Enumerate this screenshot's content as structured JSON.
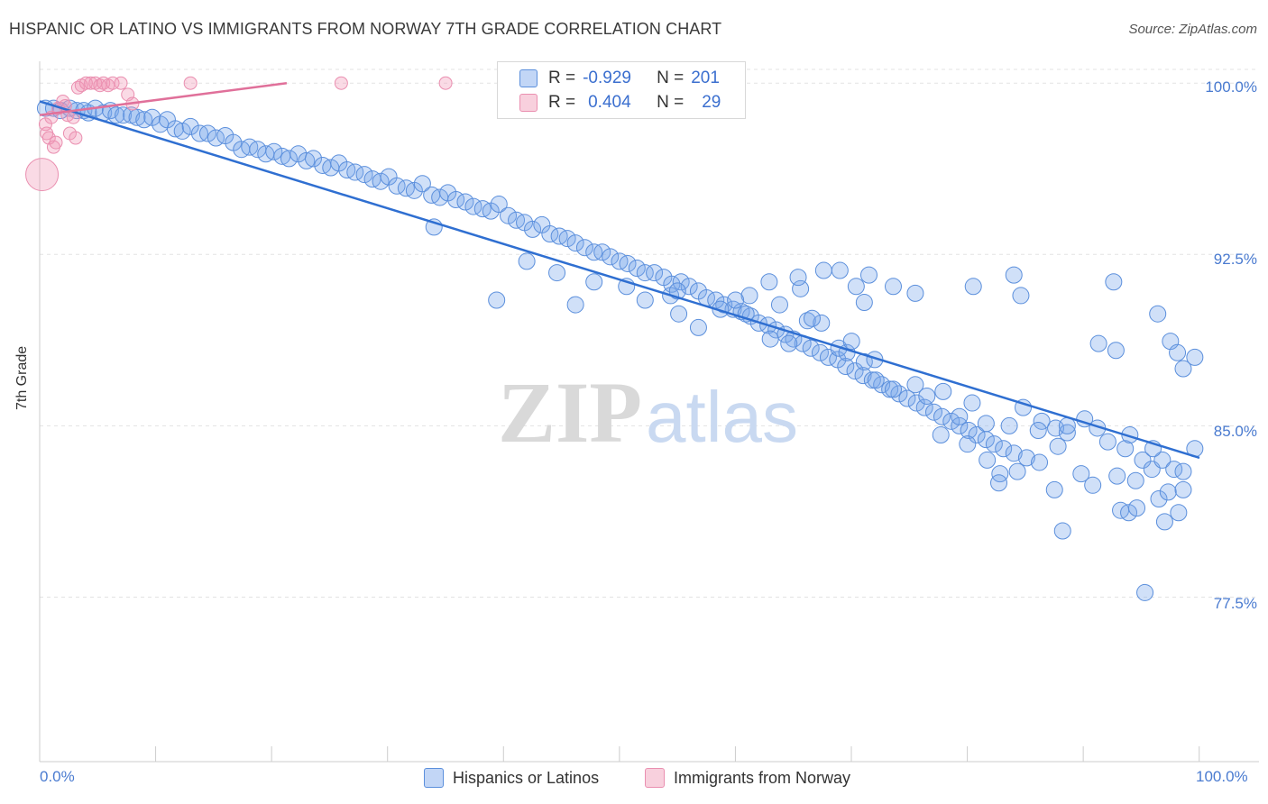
{
  "header": {
    "title": "HISPANIC OR LATINO VS IMMIGRANTS FROM NORWAY 7TH GRADE CORRELATION CHART",
    "source": "Source: ZipAtlas.com"
  },
  "watermark": {
    "zip": "ZIP",
    "atlas": "atlas"
  },
  "legend": {
    "row1": {
      "r_label": "R =",
      "r_value": "-0.929",
      "n_label": "N =",
      "n_value": "201"
    },
    "row2": {
      "r_label": "R =",
      "r_value": "0.404",
      "n_label": "N =",
      "n_value": "29"
    }
  },
  "colors": {
    "blue_fill": "rgba(120,165,235,0.35)",
    "blue_stroke": "#5b8fdc",
    "blue_line": "#2f6fd1",
    "pink_fill": "rgba(240,150,180,0.35)",
    "pink_stroke": "#ea8fb0",
    "pink_line": "#e0709a"
  },
  "chart_data": {
    "type": "scatter",
    "title": "HISPANIC OR LATINO VS IMMIGRANTS FROM NORWAY 7TH GRADE CORRELATION CHART",
    "xlabel": "",
    "ylabel": "7th Grade",
    "xlim": [
      0,
      100
    ],
    "ylim": [
      70.3,
      100.6
    ],
    "x_tick_labels": [
      "0.0%",
      "100.0%"
    ],
    "y_ticks": [
      100.0,
      92.5,
      85.0,
      77.5
    ],
    "y_tick_labels": [
      "100.0%",
      "92.5%",
      "85.0%",
      "77.5%"
    ],
    "grid": true,
    "legend_position": "top-center",
    "series": [
      {
        "name": "Hispanics or Latinos",
        "color": "#5b8fdc",
        "R": -0.929,
        "N": 201,
        "trend": {
          "x": [
            0,
            100
          ],
          "y": [
            99.2,
            83.6
          ]
        },
        "points": [
          [
            0.5,
            98.9
          ],
          [
            1.2,
            98.9
          ],
          [
            1.8,
            98.8
          ],
          [
            2.6,
            98.9
          ],
          [
            3.2,
            98.8
          ],
          [
            3.8,
            98.8
          ],
          [
            4.2,
            98.7
          ],
          [
            4.8,
            98.9
          ],
          [
            5.5,
            98.7
          ],
          [
            6.1,
            98.8
          ],
          [
            6.6,
            98.6
          ],
          [
            7.2,
            98.6
          ],
          [
            7.9,
            98.6
          ],
          [
            8.4,
            98.5
          ],
          [
            9.0,
            98.4
          ],
          [
            9.7,
            98.5
          ],
          [
            10.4,
            98.2
          ],
          [
            11.0,
            98.4
          ],
          [
            11.7,
            98.0
          ],
          [
            12.3,
            97.9
          ],
          [
            13.0,
            98.1
          ],
          [
            13.8,
            97.8
          ],
          [
            14.5,
            97.8
          ],
          [
            15.2,
            97.6
          ],
          [
            16.0,
            97.7
          ],
          [
            16.7,
            97.4
          ],
          [
            17.4,
            97.1
          ],
          [
            18.1,
            97.2
          ],
          [
            18.8,
            97.1
          ],
          [
            19.5,
            96.9
          ],
          [
            20.2,
            97.0
          ],
          [
            20.9,
            96.8
          ],
          [
            21.5,
            96.7
          ],
          [
            22.3,
            96.9
          ],
          [
            23.0,
            96.6
          ],
          [
            23.6,
            96.7
          ],
          [
            24.4,
            96.4
          ],
          [
            25.1,
            96.3
          ],
          [
            25.8,
            96.5
          ],
          [
            26.5,
            96.2
          ],
          [
            27.2,
            96.1
          ],
          [
            28.0,
            96.0
          ],
          [
            28.7,
            95.8
          ],
          [
            29.4,
            95.7
          ],
          [
            30.1,
            95.9
          ],
          [
            30.8,
            95.5
          ],
          [
            31.6,
            95.4
          ],
          [
            32.3,
            95.3
          ],
          [
            33.0,
            95.6
          ],
          [
            33.8,
            95.1
          ],
          [
            34.5,
            95.0
          ],
          [
            35.2,
            95.2
          ],
          [
            35.9,
            94.9
          ],
          [
            36.7,
            94.8
          ],
          [
            37.4,
            94.6
          ],
          [
            38.2,
            94.5
          ],
          [
            38.9,
            94.4
          ],
          [
            39.6,
            94.7
          ],
          [
            40.4,
            94.2
          ],
          [
            41.1,
            94.0
          ],
          [
            41.8,
            93.9
          ],
          [
            42.5,
            93.6
          ],
          [
            43.3,
            93.8
          ],
          [
            44.0,
            93.4
          ],
          [
            44.8,
            93.3
          ],
          [
            45.5,
            93.2
          ],
          [
            46.2,
            93.0
          ],
          [
            47.0,
            92.8
          ],
          [
            47.8,
            92.6
          ],
          [
            48.5,
            92.6
          ],
          [
            49.2,
            92.4
          ],
          [
            50.0,
            92.2
          ],
          [
            50.7,
            92.1
          ],
          [
            51.5,
            91.9
          ],
          [
            52.2,
            91.7
          ],
          [
            53.0,
            91.7
          ],
          [
            53.8,
            91.5
          ],
          [
            54.5,
            91.2
          ],
          [
            55.3,
            91.3
          ],
          [
            56.0,
            91.1
          ],
          [
            56.8,
            90.9
          ],
          [
            57.5,
            90.6
          ],
          [
            58.3,
            90.5
          ],
          [
            59.0,
            90.3
          ],
          [
            59.8,
            90.1
          ],
          [
            60.5,
            90.0
          ],
          [
            61.3,
            89.8
          ],
          [
            62.0,
            89.5
          ],
          [
            62.8,
            89.4
          ],
          [
            63.5,
            89.2
          ],
          [
            64.3,
            89.0
          ],
          [
            65.0,
            88.8
          ],
          [
            65.8,
            88.6
          ],
          [
            66.5,
            88.4
          ],
          [
            67.3,
            88.2
          ],
          [
            68.0,
            88.0
          ],
          [
            68.8,
            87.9
          ],
          [
            69.5,
            87.6
          ],
          [
            70.3,
            87.4
          ],
          [
            71.0,
            87.2
          ],
          [
            71.8,
            87.0
          ],
          [
            72.6,
            86.8
          ],
          [
            73.3,
            86.6
          ],
          [
            74.1,
            86.4
          ],
          [
            74.8,
            86.2
          ],
          [
            75.6,
            86.0
          ],
          [
            76.3,
            85.8
          ],
          [
            77.1,
            85.6
          ],
          [
            77.8,
            85.4
          ],
          [
            78.6,
            85.2
          ],
          [
            79.3,
            85.0
          ],
          [
            80.1,
            84.8
          ],
          [
            80.8,
            84.6
          ],
          [
            81.6,
            84.4
          ],
          [
            82.3,
            84.2
          ],
          [
            83.1,
            84.0
          ],
          [
            84.0,
            83.8
          ],
          [
            85.1,
            83.6
          ],
          [
            86.2,
            83.4
          ],
          [
            34.0,
            93.7
          ],
          [
            42.0,
            92.2
          ],
          [
            44.6,
            91.7
          ],
          [
            47.8,
            91.3
          ],
          [
            50.6,
            91.1
          ],
          [
            52.2,
            90.5
          ],
          [
            54.4,
            90.7
          ],
          [
            55.1,
            89.9
          ],
          [
            56.8,
            89.3
          ],
          [
            58.7,
            90.1
          ],
          [
            60.9,
            89.9
          ],
          [
            63.0,
            88.8
          ],
          [
            64.6,
            88.6
          ],
          [
            66.2,
            89.6
          ],
          [
            67.4,
            89.5
          ],
          [
            68.9,
            88.4
          ],
          [
            69.6,
            88.2
          ],
          [
            71.1,
            87.8
          ],
          [
            72.1,
            87.0
          ],
          [
            73.6,
            86.6
          ],
          [
            75.5,
            86.8
          ],
          [
            76.5,
            86.3
          ],
          [
            77.9,
            86.5
          ],
          [
            79.3,
            85.4
          ],
          [
            80.4,
            86.0
          ],
          [
            81.6,
            85.1
          ],
          [
            83.6,
            85.0
          ],
          [
            84.8,
            85.8
          ],
          [
            86.4,
            85.2
          ],
          [
            87.6,
            84.9
          ],
          [
            88.6,
            84.7
          ],
          [
            90.1,
            85.3
          ],
          [
            91.2,
            84.9
          ],
          [
            92.1,
            84.3
          ],
          [
            93.6,
            84.0
          ],
          [
            95.1,
            83.5
          ],
          [
            95.9,
            83.1
          ],
          [
            96.8,
            83.5
          ],
          [
            97.8,
            83.1
          ],
          [
            98.6,
            83.0
          ],
          [
            99.6,
            84.0
          ],
          [
            61.2,
            90.7
          ],
          [
            63.8,
            90.3
          ],
          [
            66.6,
            89.7
          ],
          [
            70.0,
            88.7
          ],
          [
            72.0,
            87.9
          ],
          [
            77.7,
            84.6
          ],
          [
            80.0,
            84.2
          ],
          [
            81.7,
            83.5
          ],
          [
            82.8,
            82.9
          ],
          [
            84.3,
            83.0
          ],
          [
            86.1,
            84.8
          ],
          [
            87.8,
            84.1
          ],
          [
            89.8,
            82.9
          ],
          [
            90.8,
            82.4
          ],
          [
            92.9,
            82.8
          ],
          [
            94.5,
            82.6
          ],
          [
            96.5,
            81.8
          ],
          [
            97.3,
            82.1
          ],
          [
            98.6,
            82.2
          ],
          [
            93.2,
            81.3
          ],
          [
            93.9,
            81.2
          ],
          [
            94.6,
            81.4
          ],
          [
            97.0,
            80.8
          ],
          [
            98.2,
            81.2
          ],
          [
            88.2,
            80.4
          ],
          [
            87.5,
            82.2
          ],
          [
            82.7,
            82.5
          ],
          [
            88.6,
            85.0
          ],
          [
            94.0,
            84.6
          ],
          [
            96.0,
            84.0
          ],
          [
            95.3,
            77.7
          ],
          [
            39.4,
            90.5
          ],
          [
            46.2,
            90.3
          ],
          [
            55.0,
            90.9
          ],
          [
            60.0,
            90.5
          ],
          [
            65.6,
            91.0
          ],
          [
            70.4,
            91.1
          ],
          [
            71.1,
            90.4
          ],
          [
            75.5,
            90.8
          ],
          [
            80.5,
            91.1
          ],
          [
            84.0,
            91.6
          ],
          [
            92.6,
            91.3
          ],
          [
            96.4,
            89.9
          ],
          [
            97.5,
            88.7
          ],
          [
            98.1,
            88.2
          ],
          [
            98.6,
            87.5
          ],
          [
            99.6,
            88.0
          ],
          [
            91.3,
            88.6
          ],
          [
            92.8,
            88.3
          ],
          [
            84.6,
            90.7
          ],
          [
            62.9,
            91.3
          ],
          [
            65.4,
            91.5
          ],
          [
            67.6,
            91.8
          ],
          [
            69.0,
            91.8
          ],
          [
            71.5,
            91.6
          ],
          [
            73.6,
            91.1
          ]
        ]
      },
      {
        "name": "Immigrants from Norway",
        "color": "#ea8fb0",
        "R": 0.404,
        "N": 29,
        "trend": {
          "x": [
            0,
            21.3
          ],
          "y": [
            98.6,
            100.0
          ]
        },
        "points": [
          [
            0.2,
            96.0
          ],
          [
            0.5,
            98.2
          ],
          [
            0.6,
            97.8
          ],
          [
            0.8,
            97.6
          ],
          [
            1.0,
            98.5
          ],
          [
            1.2,
            97.2
          ],
          [
            1.4,
            97.4
          ],
          [
            1.6,
            98.9
          ],
          [
            2.0,
            99.2
          ],
          [
            2.2,
            99.0
          ],
          [
            2.4,
            98.6
          ],
          [
            2.6,
            97.8
          ],
          [
            2.9,
            98.5
          ],
          [
            3.1,
            97.6
          ],
          [
            3.3,
            99.8
          ],
          [
            3.6,
            99.9
          ],
          [
            4.0,
            100.0
          ],
          [
            4.4,
            100.0
          ],
          [
            4.8,
            100.0
          ],
          [
            5.2,
            99.9
          ],
          [
            5.5,
            100.0
          ],
          [
            5.9,
            99.9
          ],
          [
            6.3,
            100.0
          ],
          [
            7.0,
            100.0
          ],
          [
            7.6,
            99.5
          ],
          [
            8.0,
            99.1
          ],
          [
            13.0,
            100.0
          ],
          [
            26.0,
            100.0
          ],
          [
            35.0,
            100.0
          ]
        ]
      }
    ]
  },
  "axis": {
    "y_label": "7th Grade",
    "y_ticks": [
      "100.0%",
      "92.5%",
      "85.0%",
      "77.5%"
    ],
    "x_left": "0.0%",
    "x_right": "100.0%"
  },
  "bottom_legend": {
    "item1": "Hispanics or Latinos",
    "item2": "Immigrants from Norway"
  }
}
